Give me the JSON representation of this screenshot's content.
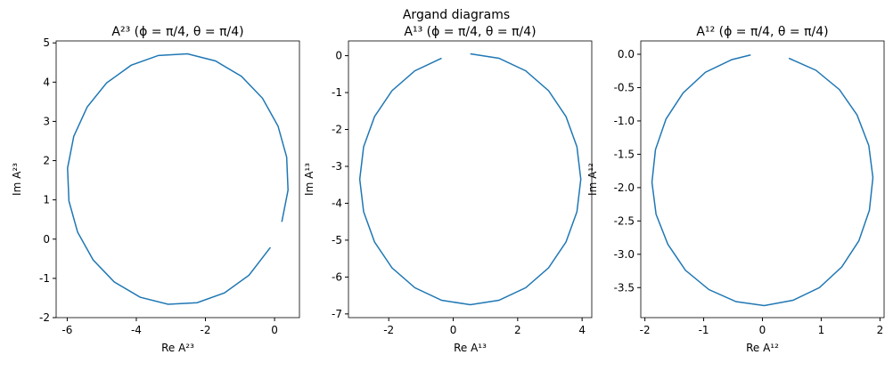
{
  "title": "Argand diagrams",
  "chart_data": [
    {
      "type": "line",
      "title": "A²³ (ϕ = π/4, θ = π/4)",
      "x_label": "Re A²³",
      "y_label": "Im A²³",
      "color": "#1f77b4",
      "x": [
        0.21,
        0.39,
        0.35,
        0.1,
        -0.35,
        -0.96,
        -1.71,
        -2.52,
        -3.36,
        -4.15,
        -4.86,
        -5.42,
        -5.81,
        -5.99,
        -5.95,
        -5.7,
        -5.25,
        -4.64,
        -3.89,
        -3.08,
        -2.24,
        -1.45,
        -0.74,
        -0.12
      ],
      "values": [
        0.44,
        1.25,
        2.09,
        2.88,
        3.59,
        4.15,
        4.54,
        4.72,
        4.68,
        4.43,
        3.98,
        3.37,
        2.62,
        1.81,
        0.97,
        0.18,
        -0.53,
        -1.09,
        -1.48,
        -1.66,
        -1.62,
        -1.37,
        -0.92,
        -0.21
      ],
      "xlim": [
        -6.32,
        0.72
      ],
      "xticks": [
        -6,
        -4,
        -2,
        0
      ],
      "ylim": [
        -2,
        5.05
      ],
      "yticks": [
        -2,
        -1,
        0,
        1,
        2,
        3,
        4,
        5
      ]
    },
    {
      "type": "line",
      "title": "A¹³ (ϕ = π/4, θ = π/4)",
      "x_label": "Re A¹³",
      "y_label": "Im A¹³",
      "color": "#1f77b4",
      "x": [
        0.53,
        1.42,
        2.25,
        2.96,
        3.5,
        3.84,
        3.96,
        3.84,
        3.5,
        2.96,
        2.25,
        1.42,
        0.53,
        -0.36,
        -1.19,
        -1.9,
        -2.44,
        -2.78,
        -2.9,
        -2.78,
        -2.44,
        -1.9,
        -1.19,
        -0.36
      ],
      "values": [
        0.05,
        -0.07,
        -0.41,
        -0.95,
        -1.65,
        -2.47,
        -3.35,
        -4.23,
        -5.05,
        -5.75,
        -6.29,
        -6.63,
        -6.75,
        -6.63,
        -6.29,
        -5.75,
        -5.05,
        -4.23,
        -3.35,
        -2.47,
        -1.65,
        -0.95,
        -0.41,
        -0.07
      ],
      "xlim": [
        -3.25,
        4.3
      ],
      "xticks": [
        -2,
        0,
        2,
        4
      ],
      "ylim": [
        -7.1,
        0.4
      ],
      "yticks": [
        -7,
        -6,
        -5,
        -4,
        -3,
        -2,
        -1,
        0
      ]
    },
    {
      "type": "line",
      "title": "A¹² (ϕ = π/4, θ = π/4)",
      "x_label": "Re A¹²",
      "y_label": "Im A¹²",
      "color": "#1f77b4",
      "x": [
        0.45,
        0.91,
        1.31,
        1.61,
        1.81,
        1.88,
        1.82,
        1.64,
        1.35,
        0.97,
        0.52,
        0.03,
        -0.45,
        -0.91,
        -1.31,
        -1.61,
        -1.81,
        -1.88,
        -1.82,
        -1.64,
        -1.35,
        -0.97,
        -0.52,
        -0.2
      ],
      "values": [
        -0.06,
        -0.24,
        -0.53,
        -0.91,
        -1.37,
        -1.85,
        -2.34,
        -2.8,
        -3.19,
        -3.5,
        -3.69,
        -3.77,
        -3.71,
        -3.53,
        -3.24,
        -2.85,
        -2.4,
        -1.92,
        -1.43,
        -0.97,
        -0.58,
        -0.27,
        -0.08,
        -0.01
      ],
      "xlim": [
        -2.07,
        2.07
      ],
      "xticks": [
        -2,
        -1,
        0,
        1,
        2
      ],
      "ylim": [
        -3.95,
        0.2
      ],
      "yticks": [
        {
          "value": 0,
          "label": "0.0"
        },
        -0.5,
        {
          "value": -1,
          "label": "-1.0"
        },
        -1.5,
        {
          "value": -2,
          "label": "-2.0"
        },
        -2.5,
        {
          "value": -3,
          "label": "-3.0"
        },
        -3.5
      ]
    }
  ]
}
